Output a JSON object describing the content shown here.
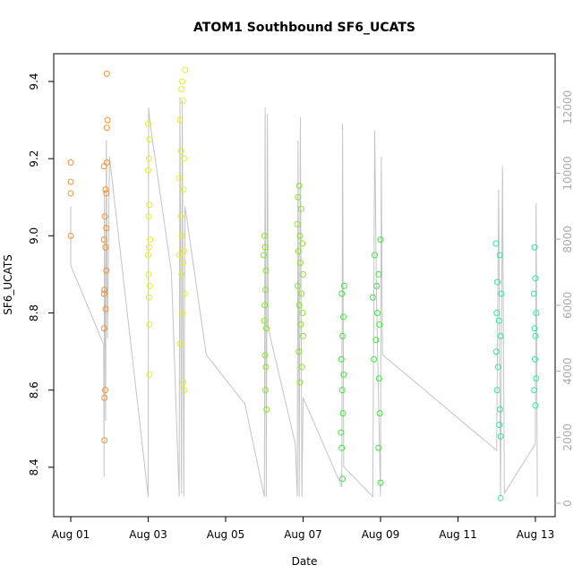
{
  "chart_data": {
    "type": "scatter",
    "title": "ATOM1 Southbound SF6_UCATS",
    "xlabel": "Date",
    "ylabel": "SF6_UCATS",
    "xlim": [
      0.56,
      13.51
    ],
    "ylim": [
      8.272,
      9.472
    ],
    "y2lim": [
      -407,
      13623
    ],
    "xticks": [
      {
        "value": 1,
        "label": "Aug 01"
      },
      {
        "value": 3,
        "label": "Aug 03"
      },
      {
        "value": 5,
        "label": "Aug 05"
      },
      {
        "value": 7,
        "label": "Aug 07"
      },
      {
        "value": 9,
        "label": "Aug 09"
      },
      {
        "value": 11,
        "label": "Aug 11"
      },
      {
        "value": 13,
        "label": "Aug 13"
      }
    ],
    "yticks": [
      8.4,
      8.6,
      8.8,
      {
        "value": 9,
        "label": "9.0"
      },
      9.2,
      9.4
    ],
    "y2ticks": [
      0,
      2000,
      4000,
      6000,
      8000,
      10000,
      12000
    ],
    "series": [
      {
        "type": "line",
        "axis": "y2",
        "color": "#c4c4c4",
        "x": [
          1.0,
          1.0,
          1.5,
          1.85,
          1.86,
          1.87,
          1.9,
          1.92,
          1.95,
          2.0,
          3.0,
          3.01,
          3.05,
          3.6,
          3.8,
          3.82,
          3.86,
          3.88,
          3.92,
          3.95,
          4.5,
          5.5,
          6.0,
          6.02,
          6.05,
          6.08,
          6.1,
          6.8,
          6.85,
          6.87,
          6.9,
          6.93,
          6.97,
          7.0,
          8.0,
          8.02,
          8.05,
          8.8,
          8.85,
          8.9,
          9.0,
          9.02,
          9.05,
          12.0,
          12.05,
          12.1,
          12.15,
          12.2,
          13.0,
          13.02,
          13.05
        ],
        "values": [
          9000,
          7200,
          5800,
          4800,
          800,
          9500,
          2500,
          11000,
          5000,
          10500,
          200,
          12000,
          11500,
          7000,
          200,
          12300,
          300,
          12200,
          200,
          9000,
          4500,
          3000,
          200,
          12000,
          200,
          11800,
          5300,
          1800,
          200,
          11000,
          200,
          11700,
          200,
          3200,
          500,
          11500,
          1100,
          200,
          11300,
          6000,
          200,
          10500,
          4500,
          1600,
          9500,
          200,
          10200,
          300,
          1800,
          9100,
          200
        ]
      },
      {
        "color": "#f59030",
        "x": [
          1,
          1,
          1,
          1,
          1.93,
          1.95,
          1.93,
          1.93,
          1.86,
          1.9,
          1.92,
          1.88,
          1.92,
          1.86,
          1.9,
          1.92,
          1.87,
          1.86,
          1.9,
          1.86,
          1.89,
          1.87,
          1.87
        ],
        "values": [
          9.19,
          9.14,
          9.11,
          9.0,
          9.42,
          9.3,
          9.28,
          9.19,
          9.18,
          9.12,
          9.11,
          9.05,
          9.02,
          8.99,
          8.97,
          8.91,
          8.86,
          8.85,
          8.81,
          8.76,
          8.6,
          8.58,
          8.47
        ]
      },
      {
        "color": "#e6ee2a",
        "x": [
          3.0,
          3.03,
          3.02,
          3.0,
          3.03,
          3.01,
          3.05,
          3.02,
          3.0,
          3.01,
          3.04,
          3.02,
          3.03,
          3.03,
          3.95,
          3.88,
          3.86,
          3.9,
          3.82,
          3.85,
          3.93,
          3.8,
          3.91,
          3.84,
          3.87,
          3.92,
          3.8,
          3.9,
          3.86,
          3.94,
          3.88,
          3.83,
          3.9,
          3.93
        ],
        "values": [
          9.29,
          9.25,
          9.2,
          9.17,
          9.08,
          9.05,
          8.99,
          8.97,
          8.95,
          8.9,
          8.87,
          8.84,
          8.77,
          8.64,
          9.43,
          9.4,
          9.38,
          9.35,
          9.3,
          9.22,
          9.2,
          9.15,
          9.12,
          9.05,
          9.0,
          8.96,
          8.95,
          8.93,
          8.9,
          8.85,
          8.8,
          8.72,
          8.62,
          8.6
        ]
      },
      {
        "color": "#86e62a",
        "x": [
          6.0,
          6.02,
          5.98,
          6.04,
          6.03,
          6.01,
          6.0,
          6.05,
          6.02,
          6.04,
          6.03,
          6.06,
          6.9,
          6.87,
          6.95,
          6.85,
          6.92,
          6.98,
          6.88,
          6.93,
          7.0,
          6.86,
          6.96,
          6.9,
          6.99,
          6.94,
          7.0,
          6.89,
          6.97,
          6.92
        ],
        "values": [
          9.0,
          8.97,
          8.95,
          8.91,
          8.86,
          8.82,
          8.78,
          8.76,
          8.69,
          8.66,
          8.6,
          8.55,
          9.13,
          9.1,
          9.07,
          9.03,
          9.0,
          8.98,
          8.96,
          8.93,
          8.9,
          8.87,
          8.85,
          8.82,
          8.8,
          8.77,
          8.74,
          8.7,
          8.66,
          8.62
        ]
      },
      {
        "color": "#3ee63e",
        "x": [
          8.06,
          8.0,
          8.04,
          8.02,
          7.99,
          8.05,
          8.01,
          8.03,
          7.98,
          8.0,
          8.02,
          9.0,
          8.85,
          8.95,
          8.9,
          8.8,
          8.92,
          8.97,
          8.88,
          8.83,
          8.96,
          8.98,
          8.95,
          9.0
        ],
        "values": [
          8.87,
          8.85,
          8.79,
          8.74,
          8.68,
          8.64,
          8.6,
          8.54,
          8.49,
          8.45,
          8.37,
          8.99,
          8.95,
          8.9,
          8.87,
          8.84,
          8.8,
          8.77,
          8.73,
          8.68,
          8.63,
          8.54,
          8.45,
          8.36
        ]
      },
      {
        "color": "#2ee6a8",
        "x": [
          11.98,
          12.08,
          12.02,
          12.12,
          12.0,
          12.06,
          12.1,
          11.99,
          12.04,
          12.01,
          12.09,
          12.07,
          12.1,
          12.1,
          12.98,
          13.0,
          12.96,
          13.02,
          12.98,
          13.0,
          12.99,
          13.02,
          12.97,
          13.0
        ],
        "values": [
          8.98,
          8.95,
          8.88,
          8.85,
          8.8,
          8.78,
          8.74,
          8.7,
          8.66,
          8.6,
          8.55,
          8.51,
          8.48,
          8.32,
          8.97,
          8.89,
          8.85,
          8.8,
          8.76,
          8.74,
          8.68,
          8.63,
          8.6,
          8.56
        ]
      }
    ]
  }
}
